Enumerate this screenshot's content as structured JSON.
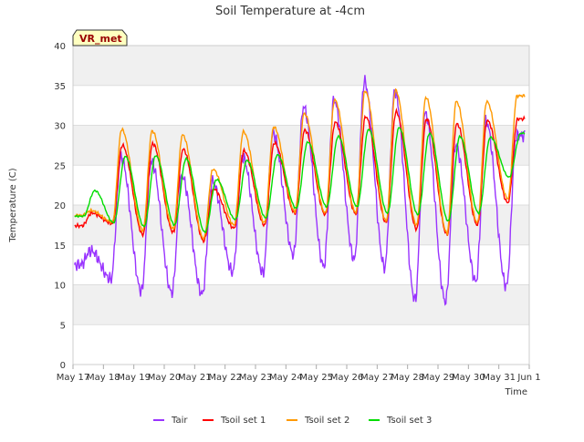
{
  "chart_data": {
    "type": "line",
    "title": "Soil Temperature at -4cm",
    "xlabel": "Time",
    "ylabel": "Temperature (C)",
    "ylim": [
      0,
      40
    ],
    "y_ticks": [
      0,
      5,
      10,
      15,
      20,
      25,
      30,
      35,
      40
    ],
    "x_ticks": [
      "May 17",
      "May 18",
      "May 19",
      "May 20",
      "May 21",
      "May 22",
      "May 23",
      "May 24",
      "May 25",
      "May 26",
      "May 27",
      "May 28",
      "May 29",
      "May 30",
      "May 31",
      "Jun 1"
    ],
    "xlim": [
      "2019-05-17",
      "2019-06-01"
    ],
    "grid": true,
    "legend_position": "bottom",
    "station_label": "VR_met",
    "daily": {
      "dates": [
        "May 17",
        "May 18",
        "May 19",
        "May 20",
        "May 21",
        "May 22",
        "May 23",
        "May 24",
        "May 25",
        "May 26",
        "May 27",
        "May 28",
        "May 29",
        "May 30",
        "May 31"
      ],
      "series": [
        {
          "name": "Tair",
          "color": "#9933ff",
          "min": [
            12.5,
            10.7,
            9.2,
            9.0,
            8.8,
            11.6,
            11.5,
            13.8,
            12.3,
            13.2,
            12.2,
            8.1,
            7.9,
            10.4,
            9.8
          ],
          "max": [
            14.3,
            26.0,
            25.5,
            23.6,
            23.0,
            26.0,
            29.0,
            32.3,
            33.2,
            35.5,
            34.3,
            31.5,
            27.5,
            30.5,
            28.7
          ]
        },
        {
          "name": "Tsoil set 1",
          "color": "#ff0000",
          "min": [
            17.4,
            17.7,
            16.3,
            16.6,
            15.5,
            17.1,
            17.5,
            19.0,
            18.8,
            18.9,
            17.8,
            17.0,
            16.3,
            17.5,
            20.3
          ],
          "max": [
            19.0,
            27.5,
            27.7,
            27.0,
            22.0,
            26.8,
            27.8,
            29.4,
            30.4,
            31.1,
            31.7,
            30.8,
            30.2,
            30.6,
            30.8
          ]
        },
        {
          "name": "Tsoil set 2",
          "color": "#ff9900",
          "min": [
            18.7,
            17.9,
            16.8,
            17.0,
            15.8,
            17.5,
            17.8,
            19.2,
            19.0,
            19.1,
            18.0,
            17.5,
            16.5,
            17.8,
            20.8
          ],
          "max": [
            19.3,
            29.5,
            29.3,
            28.8,
            24.5,
            29.2,
            29.8,
            31.5,
            33.2,
            34.3,
            34.4,
            33.5,
            33.0,
            33.0,
            33.7
          ]
        },
        {
          "name": "Tsoil set 3",
          "color": "#00dd00",
          "min": [
            18.6,
            17.8,
            17.3,
            17.5,
            16.6,
            18.2,
            18.4,
            19.6,
            19.8,
            19.8,
            19.0,
            18.8,
            18.0,
            19.0,
            23.5
          ],
          "max": [
            21.8,
            26.1,
            26.2,
            25.8,
            23.2,
            25.6,
            26.3,
            27.9,
            28.6,
            29.5,
            29.7,
            29.0,
            28.6,
            28.5,
            29.0
          ]
        }
      ]
    }
  }
}
